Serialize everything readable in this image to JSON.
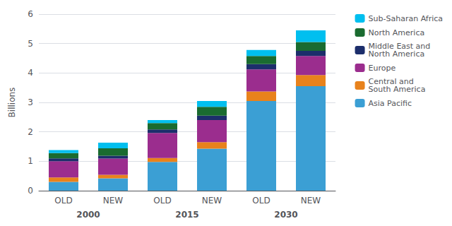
{
  "chart_data": {
    "type": "bar",
    "stacked": true,
    "categories": [
      "OLD",
      "NEW",
      "OLD",
      "NEW",
      "OLD",
      "NEW"
    ],
    "groups": [
      "2000",
      "2015",
      "2030"
    ],
    "ylabel": "Billions",
    "ylim": [
      0,
      6
    ],
    "yticks": [
      0,
      1,
      2,
      3,
      4,
      5,
      6
    ],
    "grid": true,
    "legend": "right",
    "series": [
      {
        "name": "Asia Pacific",
        "color": "#3B9FD4",
        "values": [
          0.3,
          0.42,
          0.98,
          1.43,
          3.05,
          3.55
        ]
      },
      {
        "name": "Central and\nSouth America",
        "color": "#E8821C",
        "values": [
          0.15,
          0.12,
          0.13,
          0.22,
          0.32,
          0.38
        ]
      },
      {
        "name": "Europe",
        "color": "#9B2D8E",
        "values": [
          0.55,
          0.55,
          0.85,
          0.75,
          0.75,
          0.65
        ]
      },
      {
        "name": "Middle East and\nNorth America",
        "color": "#1C2E6B",
        "values": [
          0.1,
          0.1,
          0.12,
          0.15,
          0.18,
          0.17
        ]
      },
      {
        "name": "North America",
        "color": "#1A6B30",
        "values": [
          0.18,
          0.25,
          0.22,
          0.3,
          0.28,
          0.3
        ]
      },
      {
        "name": "Sub-Saharan Africa",
        "color": "#00BFEF",
        "values": [
          0.1,
          0.19,
          0.1,
          0.2,
          0.2,
          0.4
        ]
      }
    ]
  }
}
